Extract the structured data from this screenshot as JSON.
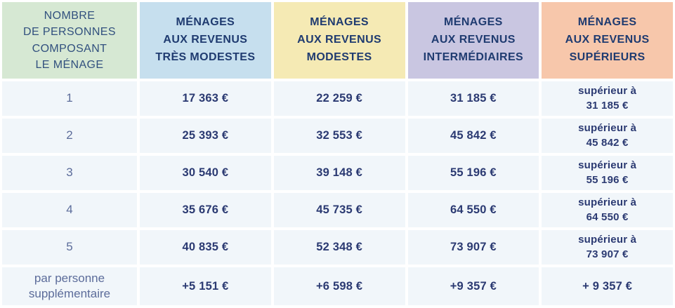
{
  "colors": {
    "header_col1_bg": "#d6e8d3",
    "header_tres_modestes_bg": "#c6dfee",
    "header_modestes_bg": "#f5eab4",
    "header_intermediaires_bg": "#c9c6e1",
    "header_superieurs_bg": "#f7c7ab",
    "body_cell_bg": "#f1f6fa",
    "header_text": "#1f3b70",
    "value_text": "#2b3a72",
    "label_text": "#5c6c9a"
  },
  "header": {
    "col1": "NOMBRE\nDE PERSONNES\nCOMPOSANT\nLE MÉNAGE",
    "col2": "MÉNAGES\nAUX REVENUS\nTRÈS MODESTES",
    "col3": "MÉNAGES\nAUX REVENUS\nMODESTES",
    "col4": "MÉNAGES\nAUX REVENUS\nINTERMÉDIAIRES",
    "col5": "MÉNAGES\nAUX REVENUS\nSUPÉRIEURS"
  },
  "rows": [
    {
      "label": "1",
      "tres_modestes": "17 363 €",
      "modestes": "22 259 €",
      "intermediaires": "31 185 €",
      "superieurs": "supérieur à\n31 185 €"
    },
    {
      "label": "2",
      "tres_modestes": "25 393 €",
      "modestes": "32 553 €",
      "intermediaires": "45 842 €",
      "superieurs": "supérieur à\n45 842 €"
    },
    {
      "label": "3",
      "tres_modestes": "30 540 €",
      "modestes": "39 148 €",
      "intermediaires": "55 196 €",
      "superieurs": "supérieur à\n55 196 €"
    },
    {
      "label": "4",
      "tres_modestes": "35 676 €",
      "modestes": "45 735 €",
      "intermediaires": "64 550 €",
      "superieurs": "supérieur à\n64 550 €"
    },
    {
      "label": "5",
      "tres_modestes": "40 835 €",
      "modestes": "52 348 €",
      "intermediaires": "73 907 €",
      "superieurs": "supérieur à\n73 907 €"
    },
    {
      "label": "par personne\nsupplémentaire",
      "tres_modestes": "+5 151 €",
      "modestes": "+6 598 €",
      "intermediaires": "+9 357 €",
      "superieurs": "+ 9 357 €"
    }
  ]
}
